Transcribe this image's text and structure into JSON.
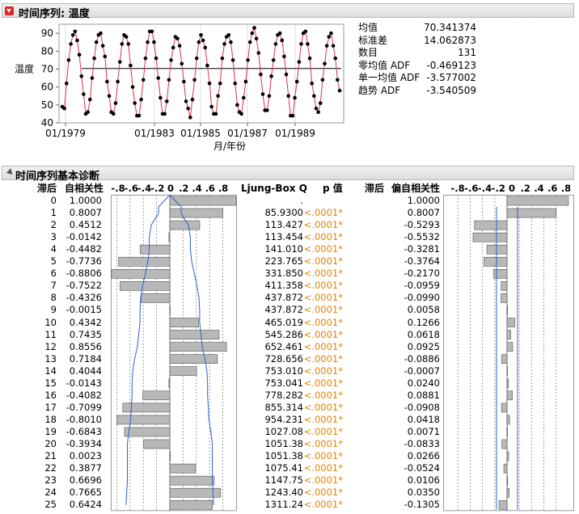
{
  "report1": {
    "title": "时间序列: 温度",
    "chart_data": {
      "type": "line",
      "ylabel": "温度",
      "xlabel": "月/年份",
      "xticks": [
        "01/1979",
        "01/1983",
        "01/1985",
        "01/1987",
        "01/1989"
      ],
      "yticks": [
        40,
        50,
        60,
        70,
        80,
        90
      ],
      "ylim": [
        40,
        95
      ],
      "mean_line": 70.341374,
      "series": [
        {
          "values": [
            49,
            48,
            62,
            75,
            84,
            89,
            91,
            86,
            78,
            66,
            56,
            45,
            46,
            53,
            65,
            76,
            85,
            89,
            90,
            83,
            77,
            63,
            55,
            46,
            45,
            51,
            63,
            74,
            84,
            89,
            88,
            84,
            72,
            60,
            51,
            44,
            44,
            53,
            64,
            76,
            85,
            91,
            91,
            85,
            76,
            65,
            54,
            45,
            45,
            52,
            64,
            75,
            82,
            88,
            87,
            83,
            73,
            63,
            52,
            48,
            43,
            53,
            64,
            76,
            85,
            89,
            86,
            82,
            72,
            62,
            49,
            45,
            45,
            55,
            62,
            76,
            84,
            88,
            89,
            85,
            75,
            62,
            50,
            46,
            45,
            54,
            63,
            75,
            85,
            90,
            93,
            87,
            79,
            67,
            56,
            47,
            47,
            55,
            66,
            75,
            84,
            89,
            90,
            86,
            77,
            67,
            55,
            44,
            44,
            54,
            63,
            74,
            84,
            90,
            91,
            84,
            76,
            62,
            55,
            48,
            46,
            51,
            64,
            73,
            83,
            88,
            90,
            83,
            76,
            64,
            58
          ]
        }
      ]
    },
    "stats": [
      {
        "label": "均值",
        "value": "70.341374"
      },
      {
        "label": "标准差",
        "value": "14.062873"
      },
      {
        "label": "数目",
        "value": "131"
      },
      {
        "label": "零均值 ADF",
        "value": "-0.469123"
      },
      {
        "label": "单一均值 ADF",
        "value": "-3.577002"
      },
      {
        "label": "趋势 ADF",
        "value": "-3.540509"
      }
    ]
  },
  "report2": {
    "title": "时间序列基本诊断",
    "headers": {
      "lag": "滞后",
      "acf": "自相关性",
      "ljung": "Ljung-Box Q",
      "p": "p 值",
      "lag2": "滞后",
      "pacf": "偏自相关性"
    },
    "bar_ticks": [
      ".8",
      ".6",
      ".4",
      ".2",
      "0",
      ".2",
      ".4",
      ".6",
      ".8"
    ],
    "bar_ticks_left": [
      "-.8",
      "-.6",
      "-.4",
      "-.2",
      "0",
      ".2",
      ".4",
      ".6",
      ".8"
    ],
    "rows": [
      {
        "lag": "0",
        "acf": "1.0000",
        "q": ".",
        "p": "",
        "pacf": "1.0000"
      },
      {
        "lag": "1",
        "acf": "0.8007",
        "q": "85.9300",
        "p": "<.0001*",
        "pacf": "0.8007"
      },
      {
        "lag": "2",
        "acf": "0.4512",
        "q": "113.427",
        "p": "<.0001*",
        "pacf": "-0.5293"
      },
      {
        "lag": "3",
        "acf": "-0.0142",
        "q": "113.454",
        "p": "<.0001*",
        "pacf": "-0.5532"
      },
      {
        "lag": "4",
        "acf": "-0.4482",
        "q": "141.010",
        "p": "<.0001*",
        "pacf": "-0.3281"
      },
      {
        "lag": "5",
        "acf": "-0.7736",
        "q": "223.765",
        "p": "<.0001*",
        "pacf": "-0.3764"
      },
      {
        "lag": "6",
        "acf": "-0.8806",
        "q": "331.850",
        "p": "<.0001*",
        "pacf": "-0.2170"
      },
      {
        "lag": "7",
        "acf": "-0.7522",
        "q": "411.358",
        "p": "<.0001*",
        "pacf": "-0.0959"
      },
      {
        "lag": "8",
        "acf": "-0.4326",
        "q": "437.872",
        "p": "<.0001*",
        "pacf": "-0.0990"
      },
      {
        "lag": "9",
        "acf": "-0.0015",
        "q": "437.872",
        "p": "<.0001*",
        "pacf": "0.0058"
      },
      {
        "lag": "10",
        "acf": "0.4342",
        "q": "465.019",
        "p": "<.0001*",
        "pacf": "0.1266"
      },
      {
        "lag": "11",
        "acf": "0.7435",
        "q": "545.286",
        "p": "<.0001*",
        "pacf": "0.0618"
      },
      {
        "lag": "12",
        "acf": "0.8556",
        "q": "652.461",
        "p": "<.0001*",
        "pacf": "0.0925"
      },
      {
        "lag": "13",
        "acf": "0.7184",
        "q": "728.656",
        "p": "<.0001*",
        "pacf": "-0.0886"
      },
      {
        "lag": "14",
        "acf": "0.4044",
        "q": "753.010",
        "p": "<.0001*",
        "pacf": "-0.0007"
      },
      {
        "lag": "15",
        "acf": "-0.0143",
        "q": "753.041",
        "p": "<.0001*",
        "pacf": "0.0240"
      },
      {
        "lag": "16",
        "acf": "-0.4082",
        "q": "778.282",
        "p": "<.0001*",
        "pacf": "0.0881"
      },
      {
        "lag": "17",
        "acf": "-0.7099",
        "q": "855.314",
        "p": "<.0001*",
        "pacf": "-0.0908"
      },
      {
        "lag": "18",
        "acf": "-0.8010",
        "q": "954.231",
        "p": "<.0001*",
        "pacf": "0.0418"
      },
      {
        "lag": "19",
        "acf": "-0.6843",
        "q": "1027.08",
        "p": "<.0001*",
        "pacf": "0.0071"
      },
      {
        "lag": "20",
        "acf": "-0.3934",
        "q": "1051.38",
        "p": "<.0001*",
        "pacf": "-0.0833"
      },
      {
        "lag": "21",
        "acf": "0.0023",
        "q": "1051.38",
        "p": "<.0001*",
        "pacf": "0.0266"
      },
      {
        "lag": "22",
        "acf": "0.3877",
        "q": "1075.41",
        "p": "<.0001*",
        "pacf": "-0.0524"
      },
      {
        "lag": "23",
        "acf": "0.6696",
        "q": "1147.75",
        "p": "<.0001*",
        "pacf": "0.0106"
      },
      {
        "lag": "24",
        "acf": "0.7665",
        "q": "1243.40",
        "p": "<.0001*",
        "pacf": "0.0350"
      },
      {
        "lag": "25",
        "acf": "0.6424",
        "q": "1311.24",
        "p": "<.0001*",
        "pacf": "-0.1305"
      }
    ],
    "acf_band": [
      0.17,
      0.28,
      0.31,
      0.31,
      0.33,
      0.37,
      0.41,
      0.44,
      0.45,
      0.45,
      0.47,
      0.49,
      0.53,
      0.56,
      0.57,
      0.57,
      0.58,
      0.59,
      0.62,
      0.64,
      0.64,
      0.64,
      0.64,
      0.65,
      0.66
    ],
    "pacf_band": 0.171
  },
  "colors": {
    "line": "#e0304a",
    "point": "#000000",
    "bar": "#b8b8b8",
    "band": "#3060d0",
    "accent": "#e08300"
  }
}
